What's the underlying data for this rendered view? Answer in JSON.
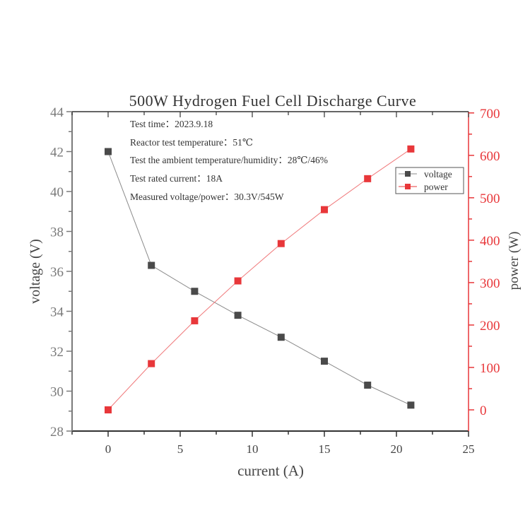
{
  "chart_data": {
    "type": "line",
    "title": "500W Hydrogen Fuel Cell Discharge Curve",
    "xlabel": "current (A)",
    "ylabel_left": "voltage (V)",
    "ylabel_right": "power (W)",
    "x": [
      0,
      3,
      6,
      9,
      12,
      15,
      18,
      21
    ],
    "series": [
      {
        "name": "voltage",
        "axis": "left",
        "color": "#4a4a4a",
        "values": [
          42.0,
          36.3,
          35.0,
          33.8,
          32.7,
          31.5,
          30.3,
          29.3
        ]
      },
      {
        "name": "power",
        "axis": "right",
        "color": "#e8373a",
        "values": [
          0,
          109,
          210,
          304,
          392,
          472,
          545,
          615
        ]
      }
    ],
    "xlim": [
      -2.5,
      25
    ],
    "ylim_left": [
      28,
      44
    ],
    "ylim_right": [
      -50,
      703
    ],
    "x_ticks": [
      "0",
      "5",
      "10",
      "15",
      "20",
      "25"
    ],
    "y_left_ticks": [
      "28",
      "30",
      "32",
      "34",
      "36",
      "38",
      "40",
      "42",
      "44"
    ],
    "y_right_ticks": [
      "0",
      "100",
      "200",
      "300",
      "400",
      "500",
      "600",
      "700"
    ],
    "grid": false,
    "legend": {
      "position": "top-right",
      "entries": [
        "voltage",
        "power"
      ]
    },
    "annotations": [
      "Test time：2023.9.18",
      "Reactor test temperature：51℃",
      "Test the ambient temperature/humidity：28℃/46%",
      "Test rated current：18A",
      "Measured voltage/power：30.3V/545W"
    ],
    "colors": {
      "left_axis": "#7a7a7a",
      "right_axis": "#e8373a",
      "frame": "#333333",
      "text": "#333333"
    }
  }
}
